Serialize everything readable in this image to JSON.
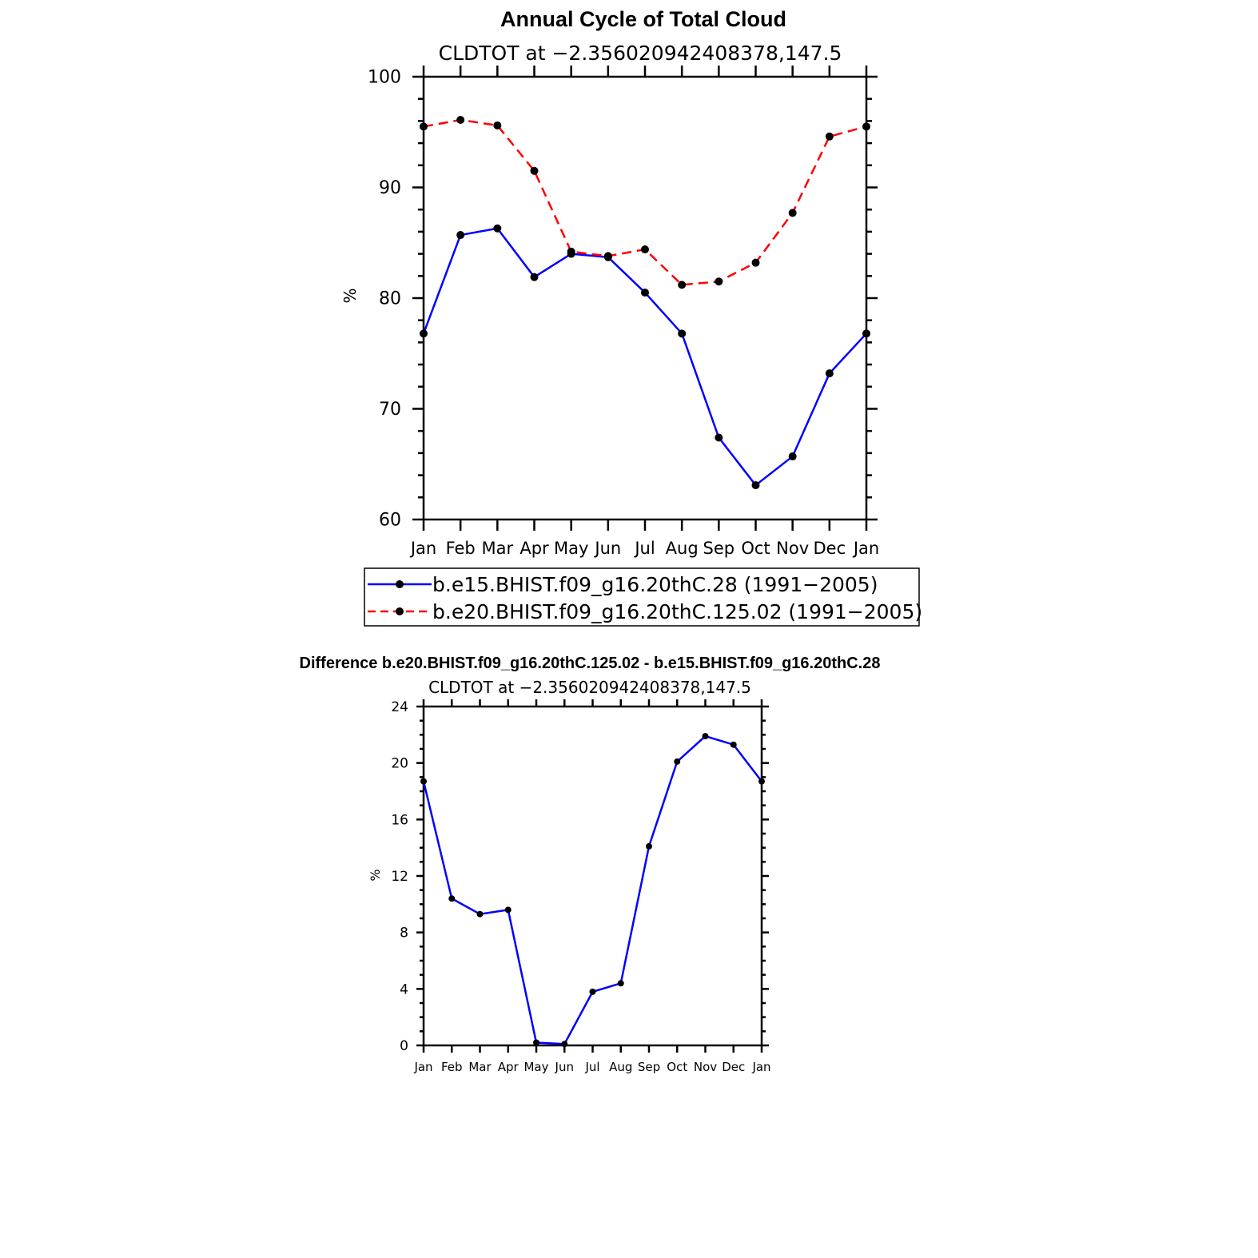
{
  "chart_data": [
    {
      "type": "line",
      "title": "Annual Cycle of Total Cloud",
      "subtitle": "CLDTOT at −2.356020942408378,147.5",
      "xlabel": "",
      "ylabel": "%",
      "categories": [
        "Jan",
        "Feb",
        "Mar",
        "Apr",
        "May",
        "Jun",
        "Jul",
        "Aug",
        "Sep",
        "Oct",
        "Nov",
        "Dec",
        "Jan"
      ],
      "ylim": [
        60,
        100
      ],
      "yticks": [
        "60",
        "70",
        "80",
        "90",
        "100"
      ],
      "grid": false,
      "legend_position": "bottom",
      "series": [
        {
          "name": "b.e15.BHIST.f09_g16.20thC.28 (1991−2005)",
          "color": "#0000ff",
          "dash": "solid",
          "values": [
            76.8,
            85.7,
            86.3,
            81.9,
            84.0,
            83.7,
            80.5,
            76.8,
            67.4,
            63.1,
            65.7,
            73.2,
            76.8
          ]
        },
        {
          "name": "b.e20.BHIST.f09_g16.20thC.125.02 (1991−2005)",
          "color": "#ff0000",
          "dash": "dashed",
          "values": [
            95.5,
            96.1,
            95.6,
            91.5,
            84.2,
            83.8,
            84.4,
            81.2,
            81.5,
            83.2,
            87.7,
            94.6,
            95.5
          ]
        }
      ]
    },
    {
      "type": "line",
      "title": "Difference b.e20.BHIST.f09_g16.20thC.125.02 - b.e15.BHIST.f09_g16.20thC.28",
      "subtitle": "CLDTOT at −2.356020942408378,147.5",
      "xlabel": "",
      "ylabel": "%",
      "categories": [
        "Jan",
        "Feb",
        "Mar",
        "Apr",
        "May",
        "Jun",
        "Jul",
        "Aug",
        "Sep",
        "Oct",
        "Nov",
        "Dec",
        "Jan"
      ],
      "ylim": [
        0,
        24
      ],
      "yticks": [
        "0",
        "4",
        "8",
        "12",
        "16",
        "20",
        "24"
      ],
      "grid": false,
      "series": [
        {
          "color": "#0000ff",
          "dash": "solid",
          "values": [
            18.7,
            10.4,
            9.3,
            9.6,
            0.2,
            0.1,
            3.8,
            4.4,
            14.1,
            20.1,
            21.9,
            21.3,
            18.7
          ]
        }
      ]
    }
  ]
}
